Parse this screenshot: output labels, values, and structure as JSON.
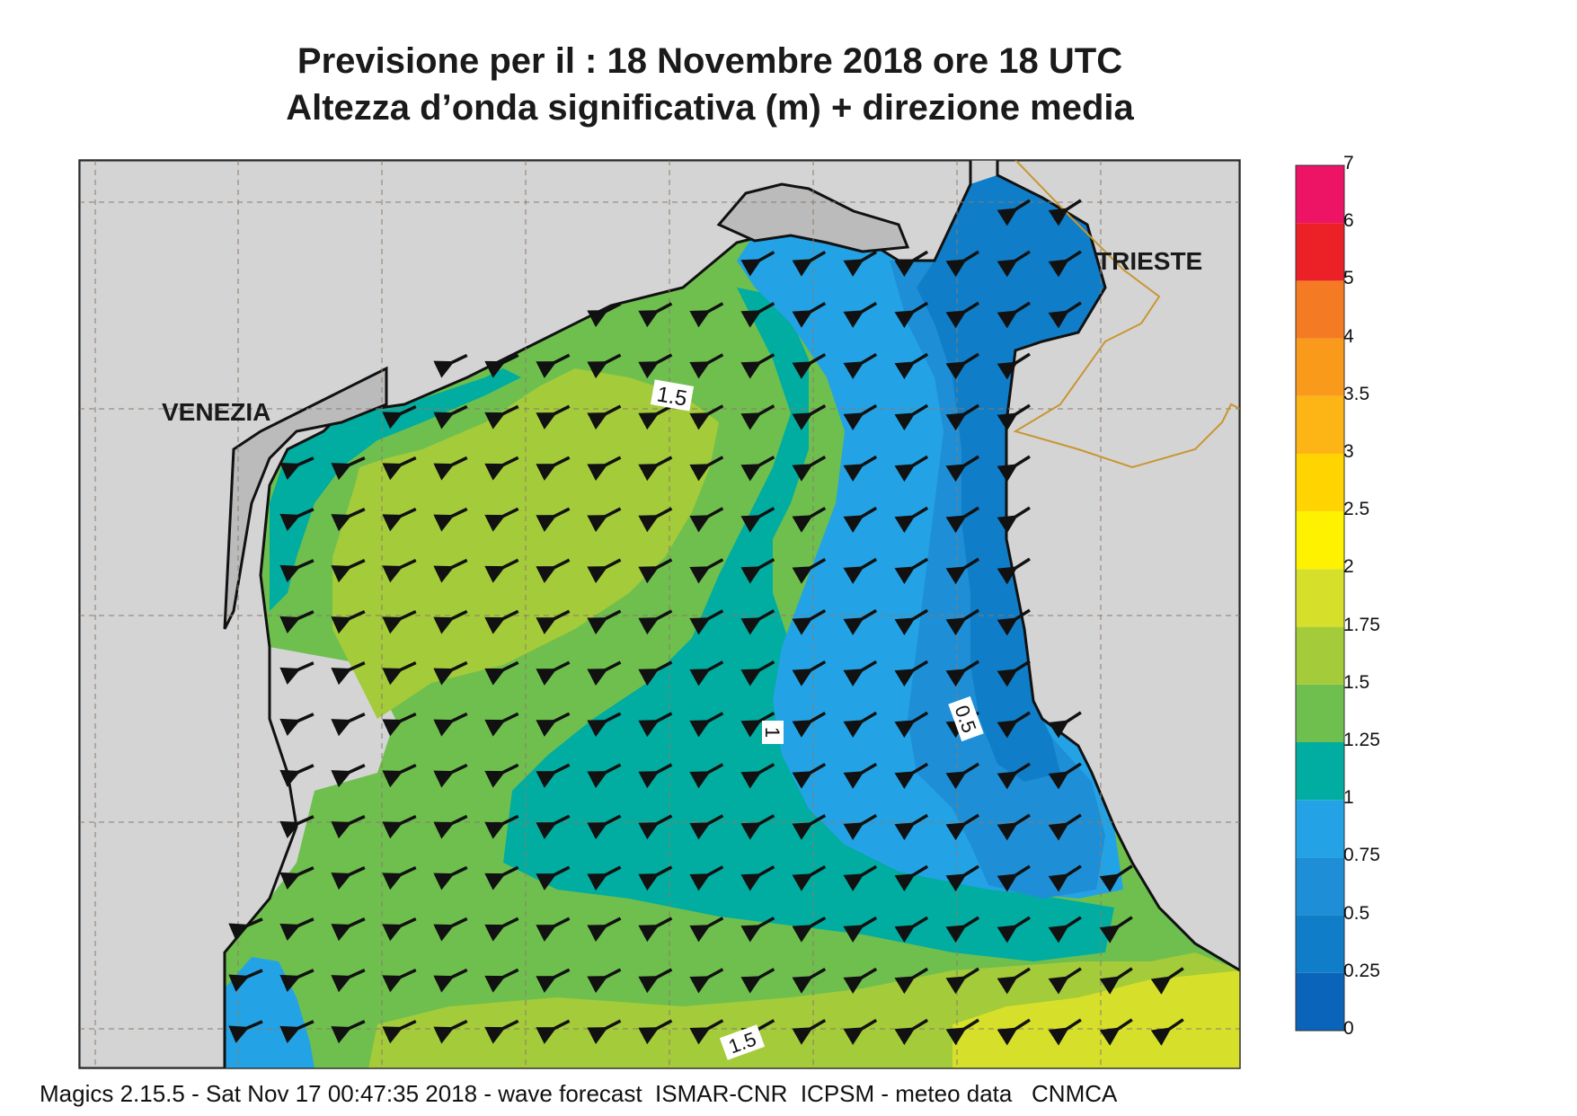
{
  "title_line1": "Previsione per il  :  18 Novembre  2018   ore 18 UTC",
  "title_line2": "Altezza d’onda significativa (m) + direzione media",
  "footer": "Magics 2.15.5 - Sat Nov 17 00:47:35 2018 - wave forecast  ISMAR-CNR  ICPSM - meteo data   CNMCA",
  "cities": {
    "venezia": "VENEZIA",
    "trieste": "TRIESTE"
  },
  "contour_labels": [
    "1.5",
    "1",
    "0.5",
    "1.5"
  ],
  "legend": {
    "items": [
      {
        "label": "0",
        "color": "#0a64b9"
      },
      {
        "label": "0.25",
        "color": "#0f7dc8"
      },
      {
        "label": "0.5",
        "color": "#1e8fd6"
      },
      {
        "label": "0.75",
        "color": "#23a3e5"
      },
      {
        "label": "1",
        "color": "#00ada0"
      },
      {
        "label": "1.25",
        "color": "#6fbf4e"
      },
      {
        "label": "1.5",
        "color": "#a4cb3a"
      },
      {
        "label": "1.75",
        "color": "#d6e02a"
      },
      {
        "label": "2",
        "color": "#fff200"
      },
      {
        "label": "2.5",
        "color": "#ffd400"
      },
      {
        "label": "3",
        "color": "#fdb515"
      },
      {
        "label": "3.5",
        "color": "#fa9a1b"
      },
      {
        "label": "4",
        "color": "#f47a24"
      },
      {
        "label": "5",
        "color": "#ec2127"
      },
      {
        "label": "6",
        "color": "#ed1365"
      }
    ],
    "top_label": "7"
  },
  "wave_direction": "from north-east towards south-west"
}
